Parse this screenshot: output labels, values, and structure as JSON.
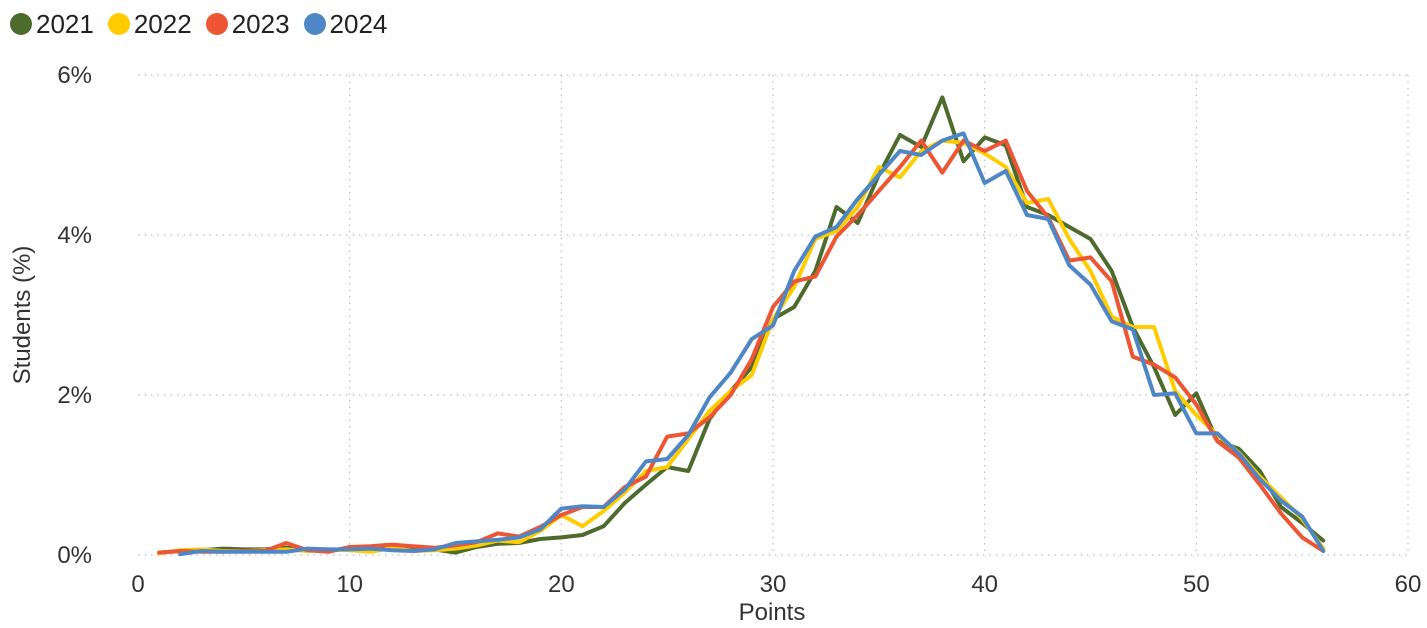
{
  "chart_data": {
    "type": "line",
    "title": "",
    "xlabel": "Points",
    "ylabel": "Students (%)",
    "xlim": [
      0,
      60
    ],
    "ylim": [
      0,
      6
    ],
    "x_ticks": [
      0,
      10,
      20,
      30,
      40,
      50,
      60
    ],
    "x_tick_labels": [
      "0",
      "10",
      "20",
      "30",
      "40",
      "50",
      "60"
    ],
    "y_ticks": [
      0,
      2,
      4,
      6
    ],
    "y_tick_labels": [
      "0%",
      "2%",
      "4%",
      "6%"
    ],
    "grid": true,
    "legend_position": "top-left",
    "x": [
      1,
      2,
      3,
      4,
      5,
      6,
      7,
      8,
      9,
      10,
      11,
      12,
      13,
      14,
      15,
      16,
      17,
      18,
      19,
      20,
      21,
      22,
      23,
      24,
      25,
      26,
      27,
      28,
      29,
      30,
      31,
      32,
      33,
      34,
      35,
      36,
      37,
      38,
      39,
      40,
      41,
      42,
      43,
      44,
      45,
      46,
      47,
      48,
      49,
      50,
      51,
      52,
      53,
      54,
      55,
      56
    ],
    "series": [
      {
        "name": "2021",
        "color": "#4d6b2d",
        "values": [
          0.03,
          0.05,
          0.06,
          0.08,
          0.07,
          0.07,
          0.09,
          0.07,
          0.06,
          0.08,
          0.07,
          0.09,
          0.08,
          0.07,
          0.03,
          0.1,
          0.14,
          0.15,
          0.2,
          0.22,
          0.25,
          0.36,
          0.65,
          0.88,
          1.1,
          1.05,
          1.7,
          2.05,
          2.35,
          2.95,
          3.1,
          3.55,
          4.35,
          4.15,
          4.75,
          5.25,
          5.1,
          5.72,
          4.92,
          5.22,
          5.12,
          4.35,
          4.25,
          4.1,
          3.95,
          3.55,
          2.85,
          2.35,
          1.75,
          2.02,
          1.42,
          1.33,
          1.05,
          0.6,
          0.4,
          0.18
        ]
      },
      {
        "name": "2022",
        "color": "#ffcc00",
        "values": [
          0.02,
          0.06,
          0.07,
          0.05,
          0.05,
          0.06,
          0.07,
          0.05,
          0.07,
          0.06,
          0.04,
          0.09,
          0.05,
          0.06,
          0.08,
          0.12,
          0.18,
          0.16,
          0.3,
          0.5,
          0.36,
          0.55,
          0.78,
          1.05,
          1.1,
          1.45,
          1.8,
          2.05,
          2.25,
          2.95,
          3.35,
          3.95,
          4.05,
          4.35,
          4.85,
          4.72,
          5.05,
          5.18,
          5.15,
          5.02,
          4.85,
          4.4,
          4.45,
          3.95,
          3.55,
          2.98,
          2.85,
          2.85,
          2.05,
          1.75,
          1.5,
          1.28,
          0.98,
          0.72,
          0.45,
          0.08
        ]
      },
      {
        "name": "2023",
        "color": "#ee5533",
        "values": [
          0.03,
          0.05,
          0.04,
          0.04,
          0.05,
          0.05,
          0.15,
          0.06,
          0.04,
          0.1,
          0.11,
          0.13,
          0.11,
          0.09,
          0.12,
          0.16,
          0.27,
          0.23,
          0.35,
          0.5,
          0.6,
          0.6,
          0.85,
          0.98,
          1.48,
          1.52,
          1.72,
          2.0,
          2.45,
          3.1,
          3.42,
          3.48,
          3.98,
          4.25,
          4.55,
          4.85,
          5.18,
          4.78,
          5.18,
          5.05,
          5.18,
          4.55,
          4.22,
          3.68,
          3.72,
          3.42,
          2.48,
          2.38,
          2.22,
          1.88,
          1.42,
          1.22,
          0.88,
          0.52,
          0.22,
          0.05
        ]
      },
      {
        "name": "2024",
        "color": "#4f86c6",
        "values": [
          null,
          0.01,
          0.05,
          0.04,
          0.04,
          0.04,
          0.04,
          0.08,
          0.07,
          0.07,
          0.08,
          0.06,
          0.05,
          0.07,
          0.15,
          0.17,
          0.19,
          0.22,
          0.32,
          0.58,
          0.61,
          0.6,
          0.82,
          1.17,
          1.2,
          1.5,
          1.97,
          2.28,
          2.7,
          2.87,
          3.55,
          3.98,
          4.1,
          4.45,
          4.75,
          5.05,
          5.0,
          5.18,
          5.27,
          4.65,
          4.8,
          4.25,
          4.2,
          3.62,
          3.38,
          2.92,
          2.82,
          2.0,
          2.02,
          1.52,
          1.52,
          1.27,
          0.95,
          0.68,
          0.48,
          0.05
        ]
      }
    ]
  }
}
